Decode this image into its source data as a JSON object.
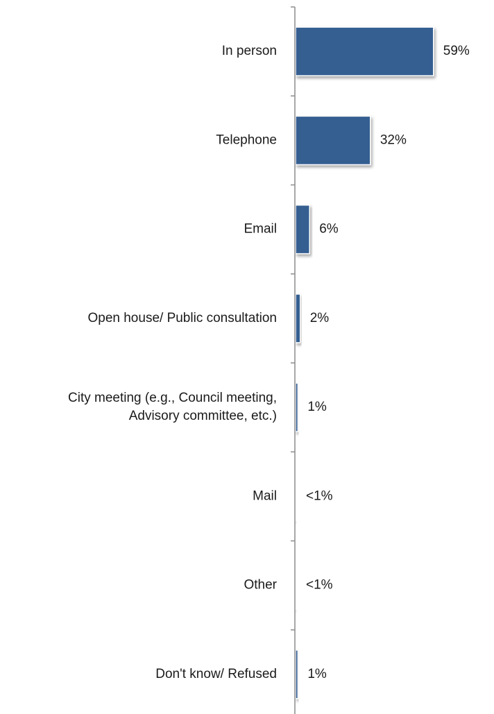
{
  "chart_data": {
    "type": "bar",
    "orientation": "horizontal",
    "categories": [
      [
        "In person"
      ],
      [
        "Telephone"
      ],
      [
        "Email"
      ],
      [
        "Open house/ Public consultation"
      ],
      [
        "City meeting (e.g., Council meeting,",
        "Advisory committee, etc.)"
      ],
      [
        "Mail"
      ],
      [
        "Other"
      ],
      [
        "Don't know/ Refused"
      ]
    ],
    "values": [
      59,
      32,
      6,
      2,
      1,
      0.3,
      0.3,
      1
    ],
    "data_labels": [
      "59%",
      "32%",
      "6%",
      "2%",
      "1%",
      "<1%",
      "<1%",
      "1%"
    ],
    "xlim": [
      0,
      65
    ],
    "grid": false,
    "legend": "none",
    "bar_color": "#355F91",
    "axis_color": "#8c8c8c"
  }
}
